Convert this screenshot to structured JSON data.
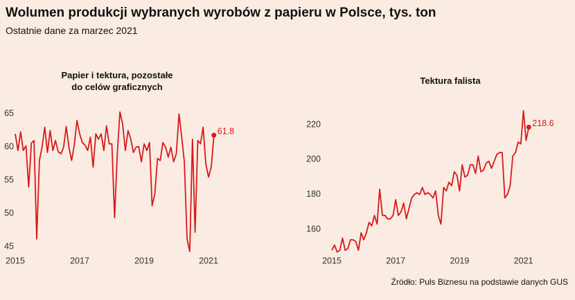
{
  "title": "Wolumen produkcji wybranych wyrobów z papieru w Polsce, tys. ton",
  "subtitle": "Ostatnie dane za marzec 2021",
  "source": "Źródło: Puls Biznesu na podstawie danych GUS",
  "chart_data": [
    {
      "type": "line",
      "title": "Papier i tektura, pozostałe\ndo celów graficznych",
      "color": "#d7191c",
      "highlight_last": true,
      "x": [
        "2015-01",
        "2015-02",
        "2015-03",
        "2015-04",
        "2015-05",
        "2015-06",
        "2015-07",
        "2015-08",
        "2015-09",
        "2015-10",
        "2015-11",
        "2015-12",
        "2016-01",
        "2016-02",
        "2016-03",
        "2016-04",
        "2016-05",
        "2016-06",
        "2016-07",
        "2016-08",
        "2016-09",
        "2016-10",
        "2016-11",
        "2016-12",
        "2017-01",
        "2017-02",
        "2017-03",
        "2017-04",
        "2017-05",
        "2017-06",
        "2017-07",
        "2017-08",
        "2017-09",
        "2017-10",
        "2017-11",
        "2017-12",
        "2018-01",
        "2018-02",
        "2018-03",
        "2018-04",
        "2018-05",
        "2018-06",
        "2018-07",
        "2018-08",
        "2018-09",
        "2018-10",
        "2018-11",
        "2018-12",
        "2019-01",
        "2019-02",
        "2019-03",
        "2019-04",
        "2019-05",
        "2019-06",
        "2019-07",
        "2019-08",
        "2019-09",
        "2019-10",
        "2019-11",
        "2019-12",
        "2020-01",
        "2020-02",
        "2020-03",
        "2020-04",
        "2020-05",
        "2020-06",
        "2020-07",
        "2020-08",
        "2020-09",
        "2020-10",
        "2020-11",
        "2020-12",
        "2021-01",
        "2021-02",
        "2021-03"
      ],
      "values": [
        62,
        59.5,
        62.3,
        59.5,
        60.2,
        54,
        60.6,
        61,
        46.2,
        58,
        60,
        63,
        59.2,
        62.5,
        59.5,
        61,
        59.3,
        59,
        60,
        63.1,
        60,
        58,
        60.3,
        64,
        62,
        60.7,
        60.3,
        59.5,
        61.5,
        57,
        62,
        61.2,
        62,
        59.5,
        63.2,
        60.5,
        60.5,
        49.4,
        59,
        65.3,
        63.5,
        59.5,
        62.5,
        61.3,
        59.2,
        60,
        60.1,
        57.8,
        60.5,
        59.5,
        60.7,
        51.2,
        53,
        58.3,
        58,
        60.7,
        60,
        58.5,
        60,
        57.8,
        59,
        65,
        61.5,
        57.8,
        46.2,
        44.3,
        61.2,
        47.2,
        61,
        60.5,
        63,
        57.5,
        55.5,
        57,
        61.8
      ],
      "xlim": [
        "2015-01",
        "2021-08"
      ],
      "xticks": [
        "2015",
        "2017",
        "2019",
        "2021"
      ],
      "ylim": [
        44.1,
        66.5
      ],
      "yticks": [
        45,
        50,
        55,
        60,
        65
      ]
    },
    {
      "type": "line",
      "title": "Tektura falista",
      "color": "#d7191c",
      "highlight_last": true,
      "x": [
        "2015-01",
        "2015-02",
        "2015-03",
        "2015-04",
        "2015-05",
        "2015-06",
        "2015-07",
        "2015-08",
        "2015-09",
        "2015-10",
        "2015-11",
        "2015-12",
        "2016-01",
        "2016-02",
        "2016-03",
        "2016-04",
        "2016-05",
        "2016-06",
        "2016-07",
        "2016-08",
        "2016-09",
        "2016-10",
        "2016-11",
        "2016-12",
        "2017-01",
        "2017-02",
        "2017-03",
        "2017-04",
        "2017-05",
        "2017-06",
        "2017-07",
        "2017-08",
        "2017-09",
        "2017-10",
        "2017-11",
        "2017-12",
        "2018-01",
        "2018-02",
        "2018-03",
        "2018-04",
        "2018-05",
        "2018-06",
        "2018-07",
        "2018-08",
        "2018-09",
        "2018-10",
        "2018-11",
        "2018-12",
        "2019-01",
        "2019-02",
        "2019-03",
        "2019-04",
        "2019-05",
        "2019-06",
        "2019-07",
        "2019-08",
        "2019-09",
        "2019-10",
        "2019-11",
        "2019-12",
        "2020-01",
        "2020-02",
        "2020-03",
        "2020-04",
        "2020-05",
        "2020-06",
        "2020-07",
        "2020-08",
        "2020-09",
        "2020-10",
        "2020-11",
        "2020-12",
        "2021-01",
        "2021-02",
        "2021-03"
      ],
      "values": [
        148,
        151,
        147,
        148,
        155,
        148,
        149,
        154,
        154,
        153,
        148,
        158,
        154,
        158,
        164,
        162,
        168,
        163,
        183,
        168,
        168,
        166,
        166,
        168,
        177,
        168,
        170,
        175,
        166,
        172,
        178,
        180,
        181,
        180,
        184,
        180,
        181,
        180,
        178,
        182,
        168,
        163,
        184,
        182,
        187,
        185,
        193,
        191,
        182,
        197,
        190,
        191,
        197,
        197,
        192,
        202,
        193,
        194,
        198,
        199,
        195,
        199,
        203,
        204,
        204,
        178,
        180,
        185,
        202,
        204,
        210,
        209,
        228,
        211,
        218.6
      ],
      "xlim": [
        "2015-01",
        "2021-08"
      ],
      "xticks": [
        "2015",
        "2017",
        "2019",
        "2021"
      ],
      "ylim": [
        146.5,
        231.9
      ],
      "yticks": [
        160,
        180,
        200,
        220
      ]
    }
  ]
}
